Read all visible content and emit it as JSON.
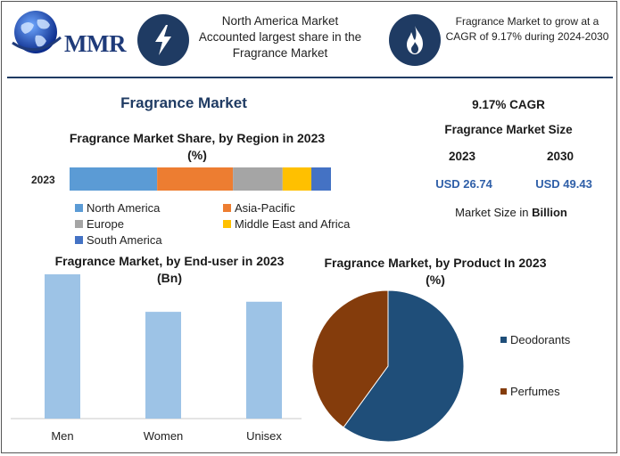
{
  "header": {
    "logo_text": "MMR",
    "box1_text": "North America Market Accounted largest share in the Fragrance Market",
    "box2_text": "Fragrance Market to grow at a CAGR of 9.17% during 2024-2030",
    "icon1": "lightning-bolt-icon",
    "icon2": "flame-icon",
    "accent": "#1f3b63"
  },
  "main_title": "Fragrance Market",
  "market_size": {
    "cagr": "9.17% CAGR",
    "title": "Fragrance Market Size",
    "year1": "2023",
    "year2": "2030",
    "value1": "USD 26.74",
    "value2": "USD 49.43",
    "footnote_prefix": "Market Size in ",
    "footnote_bold": "Billion"
  },
  "chart_data": [
    {
      "type": "bar",
      "orientation": "horizontal-stacked",
      "title": "Fragrance Market Share, by Region in 2023",
      "subtitle": "(%)",
      "categories": [
        "2023"
      ],
      "series": [
        {
          "name": "North America",
          "values": [
            33.5
          ],
          "color": "#5b9bd5"
        },
        {
          "name": "Asia-Pacific",
          "values": [
            29.0
          ],
          "color": "#ed7d31"
        },
        {
          "name": "Europe",
          "values": [
            19.0
          ],
          "color": "#a5a5a5"
        },
        {
          "name": "Middle East and Africa",
          "values": [
            11.0
          ],
          "color": "#ffc000"
        },
        {
          "name": "South America",
          "values": [
            7.5
          ],
          "color": "#4472c4"
        }
      ],
      "legend_position": "bottom"
    },
    {
      "type": "bar",
      "title": "Fragrance Market, by End-user in 2023",
      "subtitle": "(Bn)",
      "categories": [
        "Men",
        "Women",
        "Unisex"
      ],
      "values": [
        10.0,
        7.4,
        8.1
      ],
      "ylim": [
        0,
        10
      ],
      "color": "#9dc3e6",
      "grid": false
    },
    {
      "type": "pie",
      "title": "Fragrance Market, by Product In 2023",
      "subtitle": "(%)",
      "series": [
        {
          "name": "Deodorants",
          "value": 60,
          "color": "#1f4e79"
        },
        {
          "name": "Perfumes",
          "value": 40,
          "color": "#843c0c"
        }
      ],
      "legend_position": "right"
    }
  ]
}
